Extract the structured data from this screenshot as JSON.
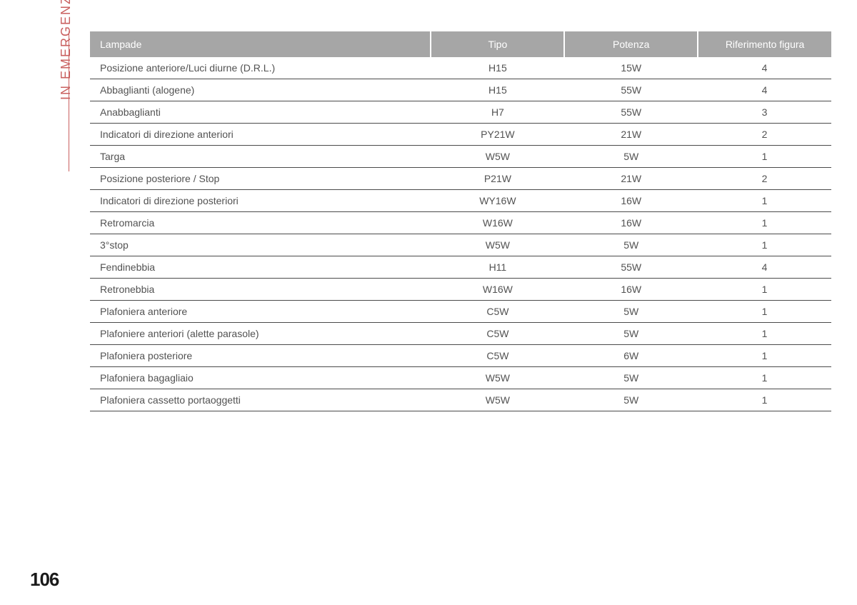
{
  "side_label": "IN EMERGENZA",
  "page_number": "106",
  "table": {
    "columns": [
      "Lampade",
      "Tipo",
      "Potenza",
      "Riferimento figura"
    ],
    "col_widths": [
      "46%",
      "18%",
      "18%",
      "18%"
    ],
    "header_bg": "#a6a6a6",
    "header_fg": "#ffffff",
    "row_fg": "#525252",
    "row_border": "#4a4a4a",
    "rows": [
      [
        "Posizione anteriore/Luci diurne (D.R.L.)",
        "H15",
        "15W",
        "4"
      ],
      [
        "Abbaglianti (alogene)",
        "H15",
        "55W",
        "4"
      ],
      [
        "Anabbaglianti",
        "H7",
        "55W",
        "3"
      ],
      [
        "Indicatori di direzione anteriori",
        "PY21W",
        "21W",
        "2"
      ],
      [
        "Targa",
        "W5W",
        "5W",
        "1"
      ],
      [
        "Posizione posteriore / Stop",
        "P21W",
        "21W",
        "2"
      ],
      [
        "Indicatori di direzione posteriori",
        "WY16W",
        "16W",
        "1"
      ],
      [
        "Retromarcia",
        "W16W",
        "16W",
        "1"
      ],
      [
        "3°stop",
        "W5W",
        "5W",
        "1"
      ],
      [
        "Fendinebbia",
        "H11",
        "55W",
        "4"
      ],
      [
        "Retronebbia",
        "W16W",
        "16W",
        "1"
      ],
      [
        "Plafoniera anteriore",
        "C5W",
        "5W",
        "1"
      ],
      [
        "Plafoniere anteriori (alette parasole)",
        "C5W",
        "5W",
        "1"
      ],
      [
        "Plafoniera posteriore",
        "C5W",
        "6W",
        "1"
      ],
      [
        "Plafoniera bagagliaio",
        "W5W",
        "5W",
        "1"
      ],
      [
        "Plafoniera cassetto portaoggetti",
        "W5W",
        "5W",
        "1"
      ]
    ]
  },
  "colors": {
    "side_label": "#c9605f",
    "background": "#ffffff",
    "page_number": "#1a1a1a"
  },
  "typography": {
    "body_font": "Helvetica, Arial, sans-serif",
    "header_fontsize": 14,
    "cell_fontsize": 14,
    "side_label_fontsize": 18,
    "page_number_fontsize": 26
  }
}
